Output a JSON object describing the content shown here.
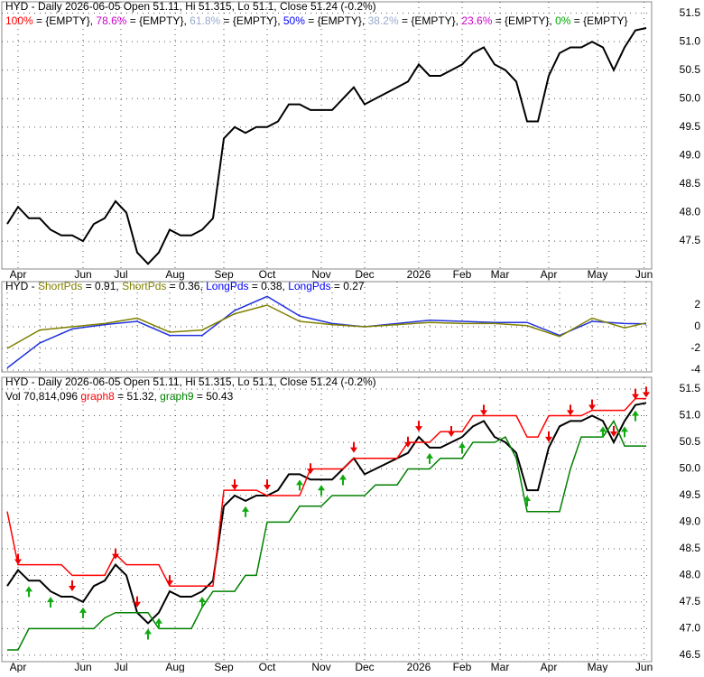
{
  "chart_data": [
    {
      "type": "line",
      "header": [
        [
          {
            "text": "HYD - Daily 2026-06-05 Open 51.11, Hi 51.315, Lo 51.1, Close 51.24 (-0.2%)",
            "color": "#000000"
          }
        ],
        [
          {
            "text": "100%",
            "color": "#ff0000"
          },
          {
            "text": " = {EMPTY}, ",
            "color": "#000000"
          },
          {
            "text": "78.6%",
            "color": "#cc00cc"
          },
          {
            "text": " = {EMPTY}, ",
            "color": "#000000"
          },
          {
            "text": "61.8%",
            "color": "#99aacc"
          },
          {
            "text": " = {EMPTY}, ",
            "color": "#000000"
          },
          {
            "text": "50%",
            "color": "#0000ff"
          },
          {
            "text": " = {EMPTY}, ",
            "color": "#000000"
          },
          {
            "text": "38.2%",
            "color": "#99aacc"
          },
          {
            "text": " = {EMPTY}, ",
            "color": "#000000"
          },
          {
            "text": "23.6%",
            "color": "#cc00cc"
          },
          {
            "text": " = {EMPTY}, ",
            "color": "#000000"
          },
          {
            "text": "0%",
            "color": "#00aa00"
          },
          {
            "text": " = {EMPTY}",
            "color": "#000000"
          }
        ]
      ],
      "x": [
        0,
        1,
        2,
        3,
        4,
        5,
        6,
        7,
        8,
        9,
        10,
        11,
        12,
        13,
        14,
        15,
        16,
        17,
        18,
        19,
        20,
        21,
        22,
        23,
        24,
        25,
        26,
        27,
        28,
        29,
        30,
        31,
        32,
        33,
        34,
        35,
        36,
        37,
        38,
        39,
        40,
        41,
        42,
        43,
        44,
        45,
        46,
        47,
        48,
        49,
        50,
        51,
        52,
        53,
        54,
        55,
        56,
        57,
        58,
        59
      ],
      "series": [
        {
          "color": "#000000",
          "values": [
            47.8,
            48.1,
            47.9,
            47.9,
            47.7,
            47.6,
            47.6,
            47.5,
            47.8,
            47.9,
            48.2,
            48.0,
            47.3,
            47.1,
            47.3,
            47.7,
            47.6,
            47.6,
            47.7,
            47.9,
            49.3,
            49.5,
            49.4,
            49.5,
            49.5,
            49.6,
            49.9,
            49.9,
            49.8,
            49.8,
            49.8,
            50.0,
            50.2,
            49.9,
            50.0,
            50.1,
            50.2,
            50.3,
            50.6,
            50.4,
            50.4,
            50.5,
            50.6,
            50.8,
            50.9,
            50.6,
            50.5,
            50.3,
            49.6,
            49.6,
            50.4,
            50.8,
            50.9,
            50.9,
            51.0,
            50.9,
            50.5,
            50.9,
            51.2,
            51.24
          ]
        }
      ],
      "xlim": [
        0,
        59
      ],
      "xticks": [
        {
          "value": 1,
          "label": "Apr"
        },
        {
          "value": 7,
          "label": "Jun"
        },
        {
          "value": 10.5,
          "label": "Jul"
        },
        {
          "value": 15.5,
          "label": "Aug"
        },
        {
          "value": 20,
          "label": "Sep"
        },
        {
          "value": 24,
          "label": "Oct"
        },
        {
          "value": 29,
          "label": "Nov"
        },
        {
          "value": 33,
          "label": "Dec"
        },
        {
          "value": 38,
          "label": "2026"
        },
        {
          "value": 42,
          "label": "Feb"
        },
        {
          "value": 45.5,
          "label": "Mar"
        },
        {
          "value": 50,
          "label": "Apr"
        },
        {
          "value": 54.5,
          "label": "May"
        },
        {
          "value": 58.8,
          "label": "Jun"
        }
      ],
      "ylim": [
        47.01,
        51.7
      ],
      "yticks": [
        47.5,
        48.0,
        48.5,
        49.0,
        49.5,
        50.0,
        50.5,
        51.0,
        51.5
      ],
      "grid": true
    },
    {
      "type": "line",
      "header": [
        [
          {
            "text": "HYD - ",
            "color": "#000000"
          },
          {
            "text": "ShortPds",
            "color": "#808000"
          },
          {
            "text": " = 0.91, ",
            "color": "#000000"
          },
          {
            "text": "ShortPds",
            "color": "#808000"
          },
          {
            "text": " = 0.36, ",
            "color": "#000000"
          },
          {
            "text": "LongPds",
            "color": "#0000ff"
          },
          {
            "text": " = 0.38, ",
            "color": "#000000"
          },
          {
            "text": "LongPds",
            "color": "#0000ff"
          },
          {
            "text": " = 0.27",
            "color": "#000000"
          }
        ]
      ],
      "x": [
        0,
        3,
        6,
        9,
        12,
        15,
        18,
        21,
        24,
        27,
        30,
        33,
        36,
        39,
        42,
        45,
        48,
        51,
        54,
        57,
        59
      ],
      "series": [
        {
          "color": "#2233dd",
          "values": [
            -3.8,
            -1.5,
            -0.2,
            0.2,
            0.5,
            -0.8,
            -0.8,
            1.5,
            2.8,
            1.0,
            0.3,
            0.0,
            0.3,
            0.6,
            0.5,
            0.4,
            0.4,
            -0.8,
            0.5,
            0.3,
            0.27
          ]
        },
        {
          "color": "#808000",
          "values": [
            -2.0,
            -0.3,
            0.0,
            0.3,
            0.8,
            -0.5,
            -0.3,
            1.2,
            2.0,
            0.5,
            0.2,
            0.0,
            0.2,
            0.4,
            0.3,
            0.3,
            0.1,
            -0.9,
            0.8,
            -0.1,
            0.36
          ]
        }
      ],
      "xlim": [
        0,
        59
      ],
      "ylim": [
        -4.17,
        4.17
      ],
      "yticks": [
        -4,
        -2,
        0,
        2
      ],
      "grid": true
    },
    {
      "type": "line",
      "header": [
        [
          {
            "text": "HYD - Daily 2026-06-05 Open 51.11, Hi 51.315, Lo 51.1, Close 51.24 (-0.2%)",
            "color": "#000000"
          }
        ],
        [
          {
            "text": "Vol 70,814,096 ",
            "color": "#000000"
          },
          {
            "text": "graph8",
            "color": "#ff0000"
          },
          {
            "text": " = 51.32, ",
            "color": "#000000"
          },
          {
            "text": "graph9",
            "color": "#008000"
          },
          {
            "text": " = 50.43",
            "color": "#000000"
          }
        ]
      ],
      "x": [
        0,
        1,
        2,
        3,
        4,
        5,
        6,
        7,
        8,
        9,
        10,
        11,
        12,
        13,
        14,
        15,
        16,
        17,
        18,
        19,
        20,
        21,
        22,
        23,
        24,
        25,
        26,
        27,
        28,
        29,
        30,
        31,
        32,
        33,
        34,
        35,
        36,
        37,
        38,
        39,
        40,
        41,
        42,
        43,
        44,
        45,
        46,
        47,
        48,
        49,
        50,
        51,
        52,
        53,
        54,
        55,
        56,
        57,
        58,
        59
      ],
      "series": [
        {
          "color": "#000000",
          "values": [
            47.8,
            48.1,
            47.9,
            47.9,
            47.7,
            47.6,
            47.6,
            47.5,
            47.8,
            47.9,
            48.2,
            48.0,
            47.3,
            47.1,
            47.3,
            47.7,
            47.6,
            47.6,
            47.7,
            47.9,
            49.3,
            49.5,
            49.4,
            49.5,
            49.5,
            49.6,
            49.9,
            49.9,
            49.8,
            49.8,
            49.8,
            50.0,
            50.2,
            49.9,
            50.0,
            50.1,
            50.2,
            50.3,
            50.6,
            50.4,
            50.4,
            50.5,
            50.6,
            50.8,
            50.9,
            50.6,
            50.5,
            50.3,
            49.6,
            49.6,
            50.4,
            50.8,
            50.9,
            50.9,
            51.0,
            50.9,
            50.5,
            50.9,
            51.2,
            51.24
          ]
        },
        {
          "color": "#ff0000",
          "values": [
            49.2,
            48.2,
            48.2,
            48.2,
            48.2,
            48.2,
            48.0,
            48.0,
            48.0,
            48.0,
            48.4,
            48.2,
            48.2,
            48.2,
            48.2,
            47.8,
            47.8,
            47.8,
            47.8,
            47.8,
            49.6,
            49.6,
            49.6,
            49.6,
            49.5,
            49.5,
            49.5,
            49.5,
            50.0,
            50.0,
            50.0,
            50.0,
            50.2,
            50.2,
            50.2,
            50.2,
            50.2,
            50.5,
            50.5,
            50.5,
            50.7,
            50.7,
            50.7,
            51.0,
            51.0,
            51.0,
            51.0,
            51.0,
            50.6,
            50.6,
            51.0,
            51.0,
            51.0,
            51.0,
            51.1,
            51.1,
            51.1,
            51.1,
            51.32,
            51.32
          ]
        },
        {
          "color": "#008000",
          "values": [
            46.6,
            46.6,
            47.0,
            47.0,
            47.0,
            47.0,
            47.0,
            47.0,
            47.0,
            47.2,
            47.3,
            47.3,
            47.3,
            47.3,
            47.0,
            47.0,
            47.0,
            47.0,
            47.4,
            47.7,
            47.7,
            47.7,
            48.0,
            48.0,
            49.0,
            49.0,
            49.0,
            49.3,
            49.3,
            49.3,
            49.5,
            49.5,
            49.5,
            49.5,
            49.7,
            49.7,
            49.7,
            50.0,
            50.0,
            50.0,
            50.2,
            50.2,
            50.2,
            50.5,
            50.5,
            50.5,
            50.6,
            50.2,
            49.2,
            49.2,
            49.2,
            49.2,
            50.0,
            50.6,
            50.6,
            50.6,
            50.9,
            50.43,
            50.43,
            50.43
          ]
        }
      ],
      "down": [
        1,
        6,
        10,
        12,
        15,
        21,
        24,
        28,
        32,
        37,
        38,
        41,
        44,
        50,
        52,
        54,
        56,
        58,
        59
      ],
      "up": [
        2,
        4,
        7,
        13,
        14,
        18,
        22,
        27,
        29,
        31,
        39,
        42,
        48,
        55,
        57,
        58
      ],
      "xlim": [
        0,
        59
      ],
      "xticks": [
        {
          "value": 1,
          "label": "Apr"
        },
        {
          "value": 7,
          "label": "Jun"
        },
        {
          "value": 10.5,
          "label": "Jul"
        },
        {
          "value": 15.5,
          "label": "Aug"
        },
        {
          "value": 20,
          "label": "Sep"
        },
        {
          "value": 24,
          "label": "Oct"
        },
        {
          "value": 29,
          "label": "Nov"
        },
        {
          "value": 33,
          "label": "Dec"
        },
        {
          "value": 38,
          "label": "2026"
        },
        {
          "value": 42,
          "label": "Feb"
        },
        {
          "value": 45.5,
          "label": "Mar"
        },
        {
          "value": 50,
          "label": "Apr"
        },
        {
          "value": 54.5,
          "label": "May"
        },
        {
          "value": 58.8,
          "label": "Jun"
        }
      ],
      "ylim": [
        46.38,
        51.72
      ],
      "yticks": [
        46.5,
        47.0,
        47.5,
        48.0,
        48.5,
        49.0,
        49.5,
        50.0,
        50.5,
        51.0,
        51.5
      ],
      "grid": true
    }
  ]
}
